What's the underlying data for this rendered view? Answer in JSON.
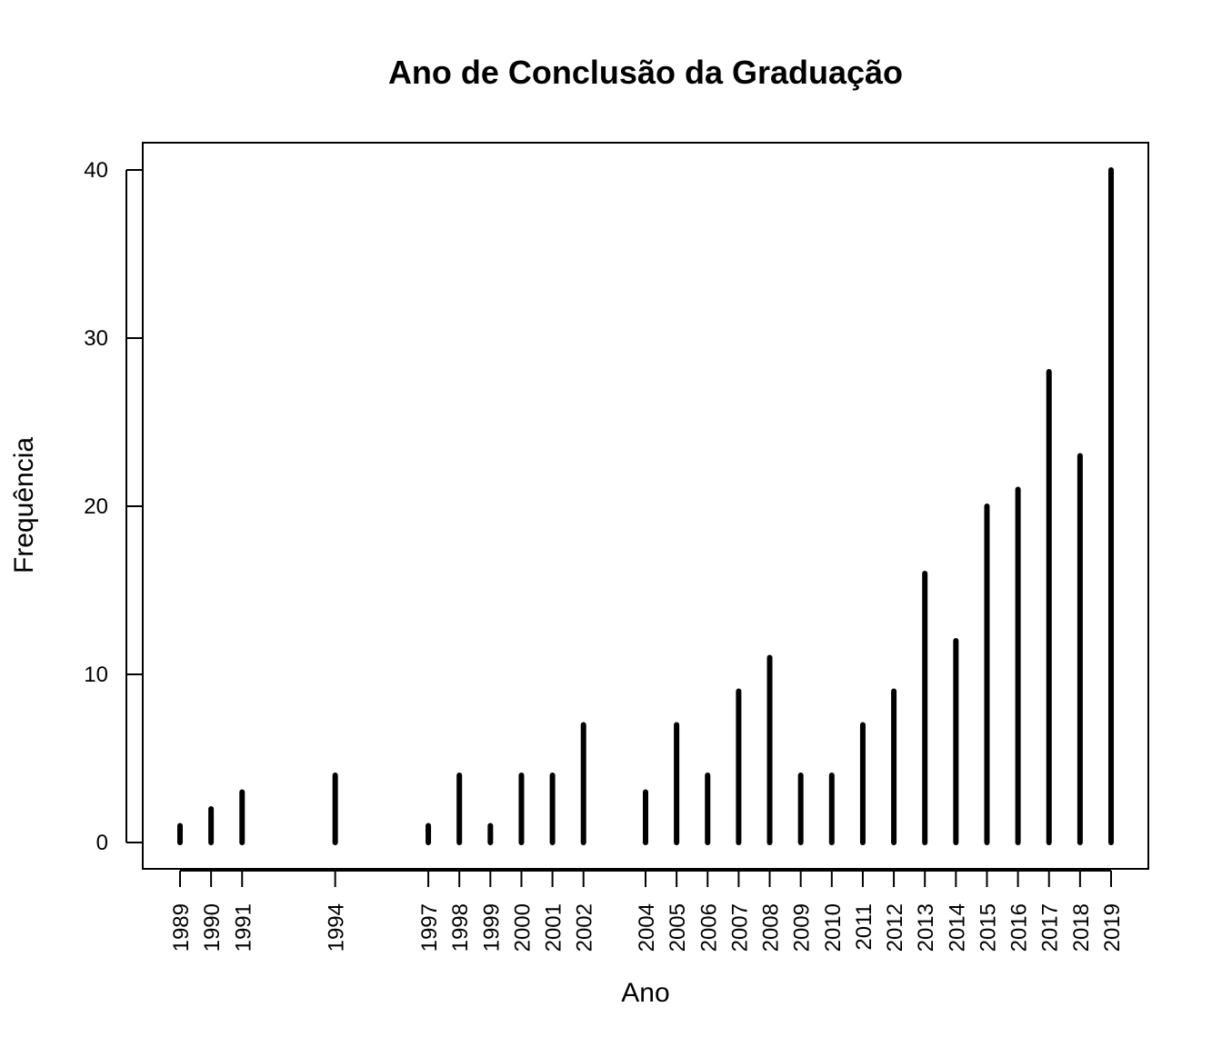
{
  "chart_data": {
    "type": "bar",
    "title": "Ano de Conclusão da Graduação",
    "xlabel": "Ano",
    "ylabel": "Frequência",
    "x": [
      1989,
      1990,
      1991,
      1994,
      1997,
      1998,
      1999,
      2000,
      2001,
      2002,
      2004,
      2005,
      2006,
      2007,
      2008,
      2009,
      2010,
      2011,
      2012,
      2013,
      2014,
      2015,
      2016,
      2017,
      2018,
      2019
    ],
    "values": [
      1,
      2,
      3,
      4,
      1,
      4,
      1,
      4,
      4,
      7,
      3,
      7,
      4,
      9,
      11,
      4,
      4,
      7,
      9,
      16,
      12,
      20,
      21,
      28,
      23,
      40
    ],
    "xlim": [
      1989,
      2019
    ],
    "ylim": [
      0,
      40
    ],
    "yticks": [
      0,
      10,
      20,
      30,
      40
    ],
    "grid": false,
    "legend": "none",
    "bar_color": "#000000"
  }
}
